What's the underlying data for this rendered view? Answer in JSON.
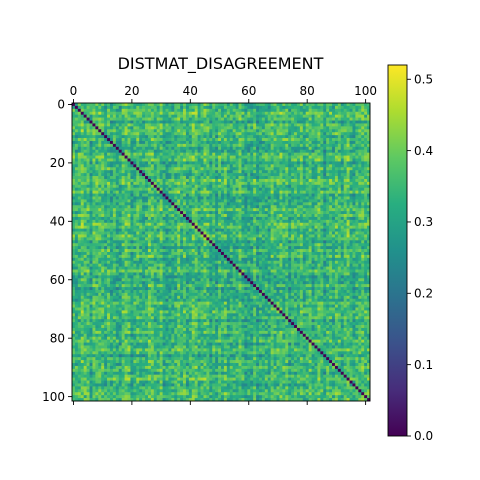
{
  "chart_data": {
    "type": "heatmap",
    "title": "DISTMAT_DISAGREEMENT",
    "n": 102,
    "x_ticks": [
      0,
      20,
      40,
      60,
      80,
      100
    ],
    "y_ticks": [
      0,
      20,
      40,
      60,
      80,
      100
    ],
    "x_ticks_position": "top",
    "colormap": "viridis",
    "diagonal_value": 0.0,
    "off_diagonal_range": [
      0.2,
      0.5
    ],
    "off_diagonal_typical": 0.34,
    "vmin": 0.0,
    "vmax": 0.52,
    "colorbar_ticks": [
      "0.0",
      "0.1",
      "0.2",
      "0.3",
      "0.4",
      "0.5"
    ],
    "colorbar_tick_values": [
      0.0,
      0.1,
      0.2,
      0.3,
      0.4,
      0.5
    ],
    "colorbar_placement": "right",
    "grid": false
  }
}
